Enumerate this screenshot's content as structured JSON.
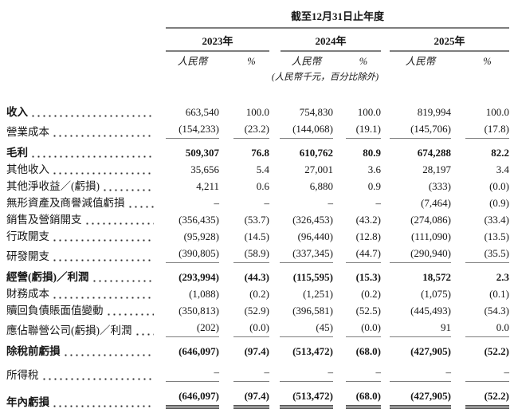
{
  "colors": {
    "rule_gray": "#7e7e7e",
    "double_rule_gray": "#5a5a5a",
    "text": "#161616",
    "background": "#ffffff"
  },
  "header": {
    "period_title": "截至12月31日止年度",
    "years": [
      "2023年",
      "2024年",
      "2025年"
    ],
    "subcol_currency": "人民幣",
    "subcol_percent": "%",
    "unit_note": "(人民幣千元，百分比除外)"
  },
  "table": {
    "rows": [
      {
        "label": "收入",
        "bold_label": true,
        "bold_values": false,
        "rule_below": "none",
        "gap_above": false,
        "values": [
          "663,540",
          "100.0",
          "754,830",
          "100.0",
          "819,994",
          "100.0"
        ]
      },
      {
        "label": "營業成本",
        "bold_label": false,
        "bold_values": false,
        "rule_below": "single",
        "gap_above": false,
        "values": [
          "(154,233)",
          "(23.2)",
          "(144,068)",
          "(19.1)",
          "(145,706)",
          "(17.8)"
        ]
      },
      {
        "label": "毛利",
        "bold_label": true,
        "bold_values": true,
        "rule_below": "none",
        "gap_above": true,
        "values": [
          "509,307",
          "76.8",
          "610,762",
          "80.9",
          "674,288",
          "82.2"
        ]
      },
      {
        "label": "其他收入",
        "bold_label": false,
        "bold_values": false,
        "rule_below": "none",
        "gap_above": false,
        "values": [
          "35,656",
          "5.4",
          "27,001",
          "3.6",
          "28,197",
          "3.4"
        ]
      },
      {
        "label": "其他淨收益／(虧損)",
        "bold_label": false,
        "bold_values": false,
        "rule_below": "none",
        "gap_above": false,
        "values": [
          "4,211",
          "0.6",
          "6,880",
          "0.9",
          "(333)",
          "(0.0)"
        ]
      },
      {
        "label": "無形資產及商譽減值虧損",
        "bold_label": false,
        "bold_values": false,
        "rule_below": "none",
        "gap_above": false,
        "values": [
          "–",
          "–",
          "–",
          "–",
          "(7,464)",
          "(0.9)"
        ]
      },
      {
        "label": "銷售及營銷開支",
        "bold_label": false,
        "bold_values": false,
        "rule_below": "none",
        "gap_above": false,
        "values": [
          "(356,435)",
          "(53.7)",
          "(326,453)",
          "(43.2)",
          "(274,086)",
          "(33.4)"
        ]
      },
      {
        "label": "行政開支",
        "bold_label": false,
        "bold_values": false,
        "rule_below": "none",
        "gap_above": false,
        "values": [
          "(95,928)",
          "(14.5)",
          "(96,440)",
          "(12.8)",
          "(111,090)",
          "(13.5)"
        ]
      },
      {
        "label": "研發開支",
        "bold_label": false,
        "bold_values": false,
        "rule_below": "single",
        "gap_above": false,
        "values": [
          "(390,805)",
          "(58.9)",
          "(337,345)",
          "(44.7)",
          "(290,940)",
          "(35.5)"
        ]
      },
      {
        "label": "經營(虧損)／利潤",
        "bold_label": true,
        "bold_values": true,
        "rule_below": "none",
        "gap_above": true,
        "values": [
          "(293,994)",
          "(44.3)",
          "(115,595)",
          "(15.3)",
          "18,572",
          "2.3"
        ]
      },
      {
        "label": "財務成本",
        "bold_label": false,
        "bold_values": false,
        "rule_below": "none",
        "gap_above": false,
        "values": [
          "(1,088)",
          "(0.2)",
          "(1,251)",
          "(0.2)",
          "(1,075)",
          "(0.1)"
        ]
      },
      {
        "label": "贖回負債賬面值變動",
        "bold_label": false,
        "bold_values": false,
        "rule_below": "none",
        "gap_above": false,
        "values": [
          "(350,813)",
          "(52.9)",
          "(396,581)",
          "(52.5)",
          "(445,493)",
          "(54.3)"
        ]
      },
      {
        "label": "應佔聯營公司(虧損)／利潤",
        "bold_label": false,
        "bold_values": false,
        "rule_below": "single",
        "gap_above": false,
        "values": [
          "(202)",
          "(0.0)",
          "(45)",
          "(0.0)",
          "91",
          "0.0"
        ]
      },
      {
        "label": "除稅前虧損",
        "bold_label": true,
        "bold_values": true,
        "rule_below": "none",
        "gap_above": true,
        "values": [
          "(646,097)",
          "(97.4)",
          "(513,472)",
          "(68.0)",
          "(427,905)",
          "(52.2)"
        ]
      },
      {
        "label": "所得稅",
        "bold_label": false,
        "bold_values": false,
        "rule_below": "single",
        "gap_above": true,
        "values": [
          "–",
          "–",
          "–",
          "–",
          "–",
          "–"
        ]
      },
      {
        "label": "年內虧損",
        "bold_label": true,
        "bold_values": true,
        "rule_below": "double",
        "gap_above": true,
        "values": [
          "(646,097)",
          "(97.4)",
          "(513,472)",
          "(68.0)",
          "(427,905)",
          "(52.2)"
        ]
      }
    ]
  }
}
